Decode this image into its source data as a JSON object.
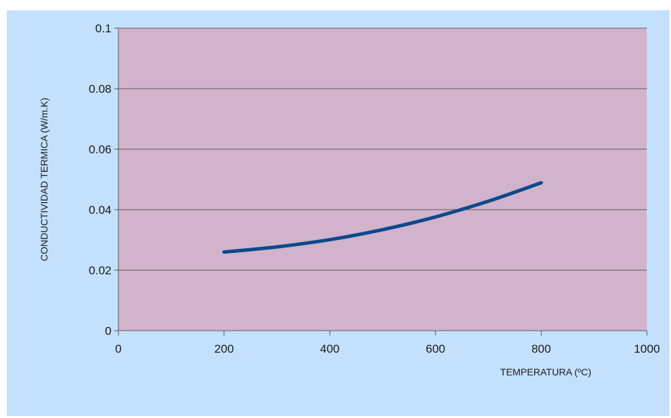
{
  "chart_data": {
    "type": "line",
    "title": "",
    "xlabel": "TEMPERATURA (ºC)",
    "ylabel": "CONDUCTIVIDAD TERMICA (W/m.K)",
    "xlim": [
      0,
      1000
    ],
    "ylim": [
      0,
      0.1
    ],
    "x_ticks": [
      "0",
      "200",
      "400",
      "600",
      "800",
      "1000"
    ],
    "y_ticks": [
      "0",
      "0.02",
      "0.04",
      "0.06",
      "0.08",
      "0.1"
    ],
    "grid": true,
    "legend": "none",
    "series": [
      {
        "x": [
          200,
          300,
          400,
          500,
          600,
          700,
          800
        ],
        "values": [
          0.026,
          0.0277,
          0.0301,
          0.0334,
          0.0376,
          0.0428,
          0.0489
        ]
      }
    ]
  },
  "colors": {
    "outer_background": "#c3e1fd",
    "plot_background": "#d1b3cc",
    "gridline": "#3a3a3a",
    "series_line": "#0b4a8c"
  }
}
